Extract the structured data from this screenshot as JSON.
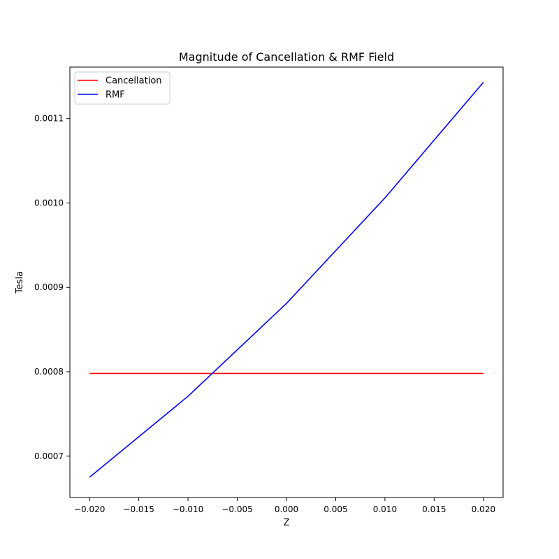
{
  "chart_data": {
    "type": "line",
    "title": "Magnitude of Cancellation & RMF Field",
    "xlabel": "Z",
    "ylabel": "Tesla",
    "xlim": [
      -0.022,
      0.022
    ],
    "ylim": [
      0.000651,
      0.001161
    ],
    "xticks": [
      -0.02,
      -0.015,
      -0.01,
      -0.005,
      0.0,
      0.005,
      0.01,
      0.015,
      0.02
    ],
    "xtick_labels": [
      "−0.020",
      "−0.015",
      "−0.010",
      "−0.005",
      "0.000",
      "0.005",
      "0.010",
      "0.015",
      "0.020"
    ],
    "yticks": [
      0.0007,
      0.0008,
      0.0009,
      0.001,
      0.0011
    ],
    "ytick_labels": [
      "0.0007",
      "0.0008",
      "0.0009",
      "0.0010",
      "0.0011"
    ],
    "grid": false,
    "legend_position": "top-left",
    "series": [
      {
        "name": "Cancellation",
        "color": "#ff0000",
        "x": [
          -0.02,
          0.02
        ],
        "y": [
          0.000798,
          0.000798
        ]
      },
      {
        "name": "RMF",
        "color": "#0000ff",
        "x": [
          -0.02,
          -0.01,
          0.0,
          0.01,
          0.02
        ],
        "y": [
          0.000675,
          0.000771,
          0.000881,
          0.001006,
          0.001143
        ]
      }
    ]
  }
}
